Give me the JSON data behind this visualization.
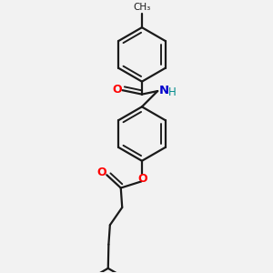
{
  "bg_color": "#f2f2f2",
  "bond_color": "#1a1a1a",
  "O_color": "#ff0000",
  "N_color": "#0000cc",
  "H_color": "#008b8b",
  "lw": 1.6,
  "dbo_r": 0.15,
  "ring_r": 1.0,
  "cyc_r": 0.88,
  "xlim": [
    0,
    10
  ],
  "ylim": [
    0,
    10
  ],
  "fig_w": 3.0,
  "fig_h": 3.0,
  "dpi": 100
}
